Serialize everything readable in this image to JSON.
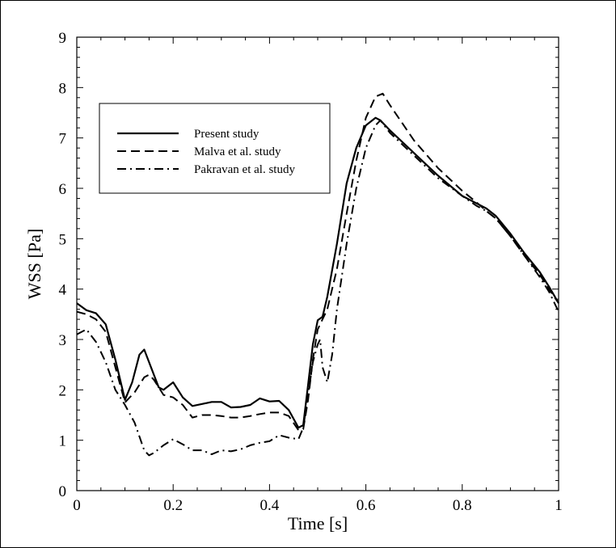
{
  "chart_data": {
    "type": "line",
    "title": "",
    "xlabel": "Time [s]",
    "ylabel": "WSS [Pa]",
    "xlim": [
      0,
      1
    ],
    "ylim": [
      0,
      9
    ],
    "xticks": [
      "0",
      "0.2",
      "0.4",
      "0.6",
      "0.8",
      "1"
    ],
    "yticks": [
      "0",
      "1",
      "2",
      "3",
      "4",
      "5",
      "6",
      "7",
      "8",
      "9"
    ],
    "grid": false,
    "legend_position": "upper-left",
    "series": [
      {
        "name": "Present study",
        "style": "solid",
        "x": [
          0,
          0.02,
          0.04,
          0.06,
          0.08,
          0.1,
          0.115,
          0.13,
          0.14,
          0.15,
          0.17,
          0.18,
          0.2,
          0.22,
          0.24,
          0.26,
          0.28,
          0.3,
          0.32,
          0.34,
          0.36,
          0.38,
          0.4,
          0.42,
          0.44,
          0.46,
          0.47,
          0.48,
          0.49,
          0.5,
          0.51,
          0.52,
          0.54,
          0.56,
          0.58,
          0.6,
          0.62,
          0.63,
          0.65,
          0.7,
          0.75,
          0.8,
          0.83,
          0.85,
          0.87,
          0.9,
          0.93,
          0.96,
          0.98,
          1.0
        ],
        "values": [
          3.72,
          3.58,
          3.52,
          3.3,
          2.6,
          1.8,
          2.15,
          2.7,
          2.8,
          2.55,
          2.05,
          2.0,
          2.15,
          1.85,
          1.68,
          1.72,
          1.76,
          1.76,
          1.65,
          1.66,
          1.7,
          1.83,
          1.77,
          1.78,
          1.6,
          1.25,
          1.3,
          2.1,
          2.9,
          3.38,
          3.45,
          3.85,
          4.9,
          6.1,
          6.8,
          7.25,
          7.4,
          7.35,
          7.15,
          6.7,
          6.25,
          5.85,
          5.7,
          5.6,
          5.45,
          5.1,
          4.7,
          4.35,
          4.05,
          3.72
        ]
      },
      {
        "name": "Malva et al. study",
        "style": "dashed",
        "x": [
          0,
          0.02,
          0.04,
          0.06,
          0.08,
          0.1,
          0.12,
          0.14,
          0.15,
          0.16,
          0.18,
          0.2,
          0.22,
          0.24,
          0.26,
          0.28,
          0.3,
          0.32,
          0.34,
          0.36,
          0.38,
          0.4,
          0.42,
          0.44,
          0.46,
          0.47,
          0.48,
          0.49,
          0.5,
          0.505,
          0.52,
          0.54,
          0.56,
          0.58,
          0.6,
          0.62,
          0.635,
          0.65,
          0.7,
          0.75,
          0.8,
          0.83,
          0.85,
          0.87,
          0.9,
          0.93,
          0.96,
          0.98,
          1.0
        ],
        "values": [
          3.55,
          3.5,
          3.4,
          3.15,
          2.45,
          1.75,
          1.95,
          2.25,
          2.3,
          2.2,
          1.9,
          1.85,
          1.7,
          1.45,
          1.5,
          1.5,
          1.48,
          1.45,
          1.45,
          1.48,
          1.52,
          1.55,
          1.55,
          1.48,
          1.2,
          1.22,
          1.8,
          2.6,
          3.2,
          3.3,
          3.6,
          4.4,
          5.5,
          6.55,
          7.4,
          7.82,
          7.88,
          7.65,
          6.95,
          6.4,
          5.95,
          5.72,
          5.55,
          5.4,
          5.05,
          4.65,
          4.3,
          4.0,
          3.72
        ]
      },
      {
        "name": "Pakravan et al. study",
        "style": "dashdot",
        "x": [
          0,
          0.02,
          0.04,
          0.06,
          0.08,
          0.1,
          0.12,
          0.14,
          0.15,
          0.16,
          0.18,
          0.2,
          0.22,
          0.24,
          0.26,
          0.28,
          0.3,
          0.32,
          0.34,
          0.36,
          0.38,
          0.4,
          0.42,
          0.44,
          0.46,
          0.47,
          0.48,
          0.49,
          0.5,
          0.505,
          0.51,
          0.52,
          0.53,
          0.54,
          0.56,
          0.58,
          0.6,
          0.62,
          0.63,
          0.65,
          0.7,
          0.75,
          0.8,
          0.83,
          0.85,
          0.87,
          0.9,
          0.93,
          0.96,
          0.98,
          1.0
        ],
        "values": [
          3.1,
          3.2,
          2.95,
          2.55,
          2.0,
          1.7,
          1.35,
          0.8,
          0.7,
          0.75,
          0.9,
          1.02,
          0.92,
          0.8,
          0.8,
          0.72,
          0.8,
          0.78,
          0.82,
          0.9,
          0.95,
          0.98,
          1.1,
          1.05,
          1.02,
          1.25,
          1.9,
          2.55,
          2.9,
          3.0,
          2.45,
          2.15,
          2.7,
          3.6,
          4.9,
          6.0,
          6.8,
          7.25,
          7.35,
          7.1,
          6.65,
          6.2,
          5.85,
          5.65,
          5.55,
          5.4,
          5.05,
          4.65,
          4.25,
          3.95,
          3.55
        ]
      }
    ]
  }
}
